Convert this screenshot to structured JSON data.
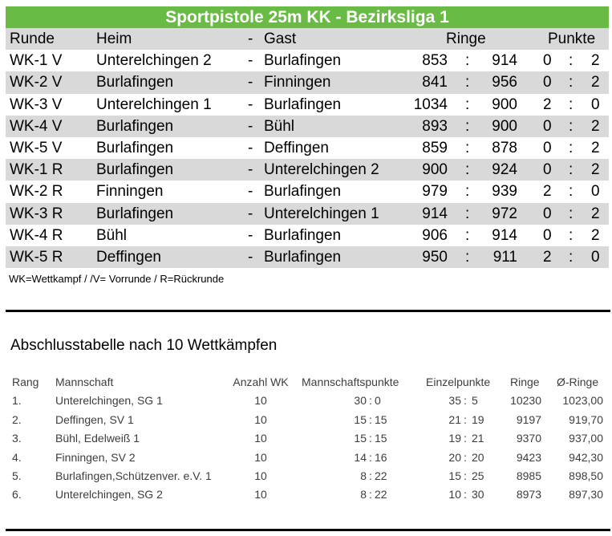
{
  "results_table": {
    "title": "Sportpistole 25m KK - Bezirksliga 1",
    "headers": {
      "round": "Runde",
      "home": "Heim",
      "dash": "-",
      "guest": "Gast",
      "rings": "Ringe",
      "points": "Punkte"
    },
    "rows": [
      {
        "round": "WK-1 V",
        "home": "Unterelchingen 2",
        "guest": "Burlafingen",
        "rings_home": "853",
        "rings_guest": "914",
        "points_home": "0",
        "points_guest": "2"
      },
      {
        "round": "WK-2 V",
        "home": "Burlafingen",
        "guest": "Finningen",
        "rings_home": "841",
        "rings_guest": "956",
        "points_home": "0",
        "points_guest": "2"
      },
      {
        "round": "WK-3 V",
        "home": "Unterelchingen 1",
        "guest": "Burlafingen",
        "rings_home": "1034",
        "rings_guest": "900",
        "points_home": "2",
        "points_guest": "0"
      },
      {
        "round": "WK-4 V",
        "home": "Burlafingen",
        "guest": "Bühl",
        "rings_home": "893",
        "rings_guest": "900",
        "points_home": "0",
        "points_guest": "2"
      },
      {
        "round": "WK-5 V",
        "home": "Burlafingen",
        "guest": "Deffingen",
        "rings_home": "859",
        "rings_guest": "878",
        "points_home": "0",
        "points_guest": "2"
      },
      {
        "round": "WK-1 R",
        "home": "Burlafingen",
        "guest": "Unterelchingen 2",
        "rings_home": "900",
        "rings_guest": "924",
        "points_home": "0",
        "points_guest": "2"
      },
      {
        "round": "WK-2 R",
        "home": "Finningen",
        "guest": "Burlafingen",
        "rings_home": "979",
        "rings_guest": "939",
        "points_home": "2",
        "points_guest": "0"
      },
      {
        "round": "WK-3 R",
        "home": "Burlafingen",
        "guest": "Unterelchingen 1",
        "rings_home": "914",
        "rings_guest": "972",
        "points_home": "0",
        "points_guest": "2"
      },
      {
        "round": "WK-4 R",
        "home": "Bühl",
        "guest": "Burlafingen",
        "rings_home": "906",
        "rings_guest": "914",
        "points_home": "0",
        "points_guest": "2"
      },
      {
        "round": "WK-5 R",
        "home": "Deffingen",
        "guest": "Burlafingen",
        "rings_home": "950",
        "rings_guest": "911",
        "points_home": "2",
        "points_guest": "0"
      }
    ],
    "separator": ":",
    "footnote": "WK=Wettkampf / /V= Vorrunde / R=Rückrunde"
  },
  "standings": {
    "title": "Abschlusstabelle nach 10 Wettkämpfen",
    "headers": {
      "rank": "Rang",
      "team": "Mannschaft",
      "matches": "Anzahl WK",
      "team_points": "Mannschaftspunkte",
      "single_points": "Einzelpunkte",
      "rings": "Ringe",
      "avg_rings": "Ø-Ringe"
    },
    "rows": [
      {
        "rank": "1.",
        "team": "Unterelchingen, SG 1",
        "matches": "10",
        "tp_plus": "30",
        "tp_minus": "0",
        "sp_plus": "35",
        "sp_minus": "5",
        "rings": "10230",
        "avg_rings": "1023,00"
      },
      {
        "rank": "2.",
        "team": "Deffingen, SV 1",
        "matches": "10",
        "tp_plus": "15",
        "tp_minus": "15",
        "sp_plus": "21",
        "sp_minus": "19",
        "rings": "9197",
        "avg_rings": "919,70"
      },
      {
        "rank": "3.",
        "team": "Bühl, Edelweiß 1",
        "matches": "10",
        "tp_plus": "15",
        "tp_minus": "15",
        "sp_plus": "19",
        "sp_minus": "21",
        "rings": "9370",
        "avg_rings": "937,00"
      },
      {
        "rank": "4.",
        "team": "Finningen, SV 2",
        "matches": "10",
        "tp_plus": "14",
        "tp_minus": "16",
        "sp_plus": "20",
        "sp_minus": "20",
        "rings": "9423",
        "avg_rings": "942,30"
      },
      {
        "rank": "5.",
        "team": "Burlafingen,Schützenver. e.V. 1",
        "matches": "10",
        "tp_plus": "8",
        "tp_minus": "22",
        "sp_plus": "15",
        "sp_minus": "25",
        "rings": "8985",
        "avg_rings": "898,50"
      },
      {
        "rank": "6.",
        "team": "Unterelchingen, SG 2",
        "matches": "10",
        "tp_plus": "8",
        "tp_minus": "22",
        "sp_plus": "10",
        "sp_minus": "30",
        "rings": "8973",
        "avg_rings": "897,30"
      }
    ]
  },
  "colors": {
    "title_bar": "#6aba46",
    "shaded_row": "#d9d9d9",
    "standings_text": "#3d3d3d"
  }
}
